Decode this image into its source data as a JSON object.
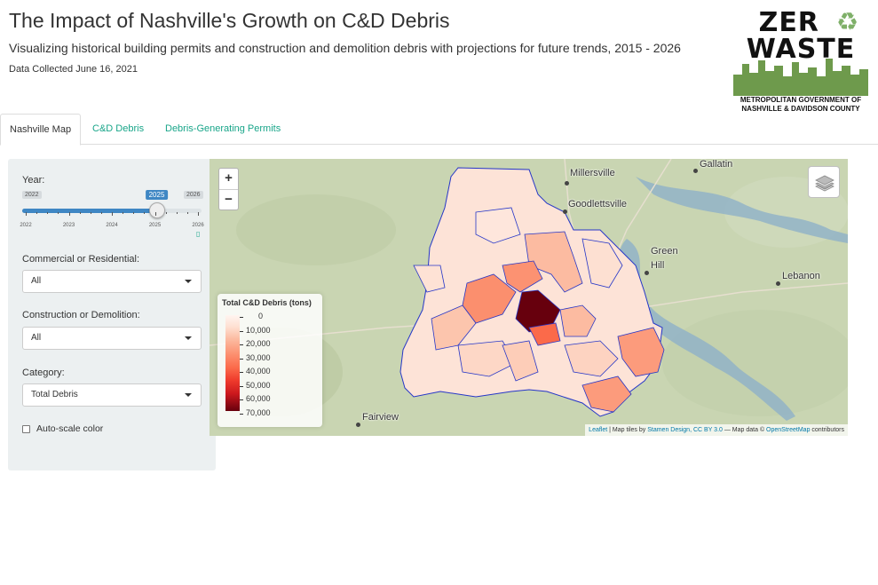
{
  "header": {
    "title": "The Impact of Nashville's Growth on C&D Debris",
    "subtitle": "Visualizing historical building permits and construction and demolition debris with projections for future trends, 2015 - 2026",
    "collected": "Data Collected June 16, 2021"
  },
  "logo": {
    "line1": "ZER",
    "line2": "WASTE",
    "caption1": "METROPOLITAN GOVERNMENT OF",
    "caption2": "NASHVILLE & DAVIDSON COUNTY",
    "recycle_icon": "recycle-icon"
  },
  "tabs": [
    {
      "label": "Nashville Map",
      "active": true
    },
    {
      "label": "C&D Debris",
      "active": false
    },
    {
      "label": "Debris-Generating Permits",
      "active": false
    }
  ],
  "sidebar": {
    "year_label": "Year:",
    "year_min": "2022",
    "year_max": "2026",
    "year_value": "2025",
    "year_value_fraction": 0.75,
    "ticks": [
      "2022",
      "2023",
      "2024",
      "2025",
      "2026"
    ],
    "cr_label": "Commercial or Residential:",
    "cr_value": "All",
    "cd_label": "Construction or Demolition:",
    "cd_value": "All",
    "cat_label": "Category:",
    "cat_value": "Total Debris",
    "autoscale_label": "Auto-scale color",
    "autoscale_checked": false
  },
  "map": {
    "zoom_in": "+",
    "zoom_out": "−",
    "cities": [
      "Millersville",
      "Gallatin",
      "Goodlettsville",
      "Green",
      "Hill",
      "Lebanon",
      "Fairview"
    ],
    "legend": {
      "title": "Total C&D Debris (tons)",
      "labels": [
        "0",
        "10,000",
        "20,000",
        "30,000",
        "40,000",
        "50,000",
        "60,000",
        "70,000"
      ]
    },
    "attribution": {
      "leaflet": "Leaflet",
      "sep1": " | Map tiles by ",
      "stamen": "Stamen Design, CC BY 3.0",
      "sep2": " — Map data © ",
      "osm": "OpenStreetMap",
      "sep3": " contributors"
    }
  },
  "colors": {
    "accent": "#18a589",
    "slider": "#3f87c4",
    "sidebar_bg": "#ecf0f1",
    "boundary": "#2536c8",
    "darkest": "#67000d"
  }
}
